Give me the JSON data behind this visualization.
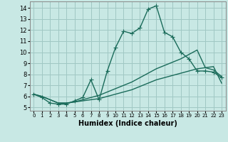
{
  "title": "",
  "xlabel": "Humidex (Indice chaleur)",
  "ylabel": "",
  "xlim": [
    -0.5,
    23.5
  ],
  "ylim": [
    4.7,
    14.6
  ],
  "xticks": [
    0,
    1,
    2,
    3,
    4,
    5,
    6,
    7,
    8,
    9,
    10,
    11,
    12,
    13,
    14,
    15,
    16,
    17,
    18,
    19,
    20,
    21,
    22,
    23
  ],
  "yticks": [
    5,
    6,
    7,
    8,
    9,
    10,
    11,
    12,
    13,
    14
  ],
  "bg_color": "#c8e8e4",
  "grid_color": "#a0c8c4",
  "line_color": "#1a6b5a",
  "line1": [
    6.2,
    5.9,
    5.4,
    5.3,
    5.3,
    5.6,
    5.9,
    7.5,
    5.7,
    8.3,
    10.4,
    11.9,
    11.7,
    12.2,
    13.9,
    14.2,
    11.8,
    11.4,
    10.0,
    9.4,
    8.3,
    8.3,
    8.2,
    7.7
  ],
  "line2": [
    6.2,
    6.0,
    5.7,
    5.4,
    5.4,
    5.5,
    5.6,
    5.7,
    5.8,
    6.0,
    6.2,
    6.4,
    6.6,
    6.9,
    7.2,
    7.5,
    7.7,
    7.9,
    8.1,
    8.3,
    8.5,
    8.6,
    8.7,
    7.2
  ],
  "line3": [
    6.2,
    6.0,
    5.7,
    5.4,
    5.4,
    5.5,
    5.7,
    5.9,
    6.1,
    6.4,
    6.7,
    7.0,
    7.3,
    7.7,
    8.1,
    8.5,
    8.8,
    9.1,
    9.4,
    9.8,
    10.2,
    8.6,
    8.4,
    7.8
  ],
  "marker": "+",
  "markersize": 4,
  "linewidth": 1.0,
  "xlabel_fontsize": 7,
  "tick_fontsize_x": 5,
  "tick_fontsize_y": 6
}
